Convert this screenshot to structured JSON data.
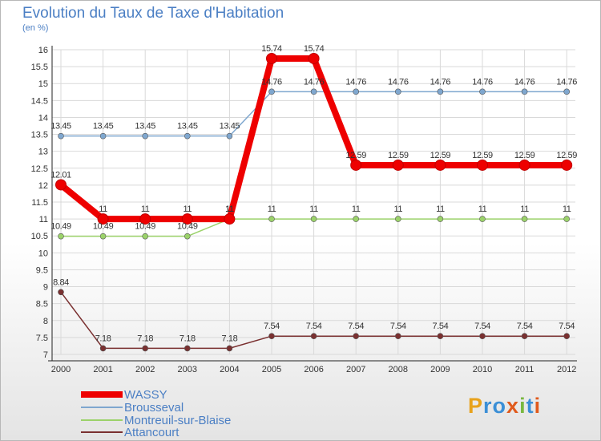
{
  "chart_data": {
    "type": "line",
    "title": "Evolution du Taux de Taxe d'Habitation",
    "subtitle": "(en %)",
    "ylim": [
      7,
      16
    ],
    "yticks": [
      "7",
      "7.5",
      "8",
      "8.5",
      "9",
      "9.5",
      "10",
      "10.5",
      "11",
      "11.5",
      "12",
      "12.5",
      "13",
      "13.5",
      "14",
      "14.5",
      "15",
      "15.5",
      "16"
    ],
    "yticksValues": [
      7,
      7.5,
      8,
      8.5,
      9,
      9.5,
      10,
      10.5,
      11,
      11.5,
      12,
      12.5,
      13,
      13.5,
      14,
      14.5,
      15,
      15.5,
      16
    ],
    "x": [
      "2000",
      "2001",
      "2002",
      "2003",
      "2004",
      "2005",
      "2006",
      "2007",
      "2008",
      "2009",
      "2010",
      "2011",
      "2012"
    ],
    "series": [
      {
        "name": "WASSY",
        "color": "#ee0000",
        "values": [
          12.01,
          11,
          11,
          11,
          11,
          15.74,
          15.74,
          12.59,
          12.59,
          12.59,
          12.59,
          12.59,
          12.59
        ],
        "labels": [
          "12.01",
          "11",
          "11",
          "11",
          "11",
          "15.74",
          "15.74",
          "12.59",
          "12.59",
          "12.59",
          "12.59",
          "12.59",
          "12.59"
        ]
      },
      {
        "name": "Brousseval",
        "color": "#7fa7cf",
        "values": [
          13.45,
          13.45,
          13.45,
          13.45,
          13.45,
          14.76,
          14.76,
          14.76,
          14.76,
          14.76,
          14.76,
          14.76,
          14.76
        ],
        "labels": [
          "13.45",
          "13.45",
          "13.45",
          "13.45",
          "13.45",
          "14.76",
          "14.76",
          "14.76",
          "14.76",
          "14.76",
          "14.76",
          "14.76",
          "14.76"
        ]
      },
      {
        "name": "Montreuil-sur-Blaise",
        "color": "#9bd26a",
        "values": [
          10.49,
          10.49,
          10.49,
          10.49,
          11,
          11,
          11,
          11,
          11,
          11,
          11,
          11,
          11
        ],
        "labels": [
          "10.49",
          "10.49",
          "10.49",
          "10.49",
          "11",
          "11",
          "11",
          "11",
          "11",
          "11",
          "11",
          "11",
          "11"
        ]
      },
      {
        "name": "Attancourt",
        "color": "#7a3030",
        "values": [
          8.84,
          7.18,
          7.18,
          7.18,
          7.18,
          7.54,
          7.54,
          7.54,
          7.54,
          7.54,
          7.54,
          7.54,
          7.54
        ],
        "labels": [
          "8.84",
          "7.18",
          "7.18",
          "7.18",
          "7.18",
          "7.54",
          "7.54",
          "7.54",
          "7.54",
          "7.54",
          "7.54",
          "7.54",
          "7.54"
        ]
      }
    ],
    "legend": [
      "WASSY",
      "Brousseval",
      "Montreuil-sur-Blaise",
      "Attancourt"
    ]
  },
  "logo": {
    "letters": [
      "P",
      "r",
      "o",
      "x",
      "i",
      "t",
      "i"
    ],
    "colors": [
      "#e8a21c",
      "#3b8fd6",
      "#3b8fd6",
      "#e05a1c",
      "#79b840",
      "#3b8fd6",
      "#e05a1c"
    ]
  }
}
